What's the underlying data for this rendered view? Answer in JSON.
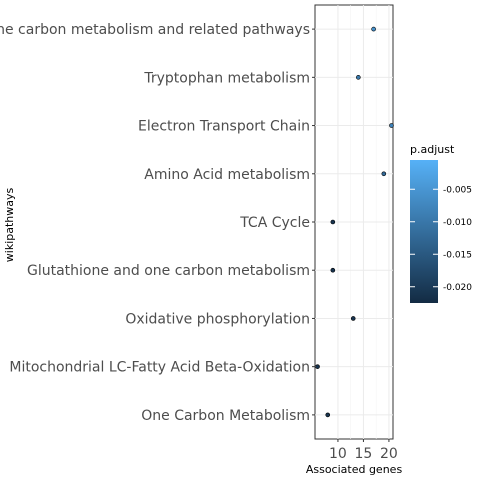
{
  "chart_data": {
    "type": "scatter",
    "xlabel": "Associated genes",
    "ylabel": "wikipathways",
    "xlim": [
      5.5,
      20.8
    ],
    "x_ticks": [
      "10",
      "15",
      "20"
    ],
    "x_tick_values": [
      10,
      15,
      20
    ],
    "grid": true,
    "categories": [
      "One carbon metabolism and related pathways",
      "Tryptophan metabolism",
      "Electron Transport Chain",
      "Amino Acid metabolism",
      "TCA Cycle",
      "Glutathione and one carbon metabolism",
      "Oxidative phosphorylation",
      "Mitochondrial LC-Fatty Acid Beta-Oxidation",
      "One Carbon Metabolism"
    ],
    "values": [
      17,
      14,
      20.5,
      19,
      9,
      9,
      13,
      6,
      8
    ],
    "p_adjust": [
      -0.006,
      -0.01,
      -0.008,
      -0.012,
      -0.021,
      -0.021,
      -0.021,
      -0.021,
      -0.021
    ],
    "legend": {
      "title": "p.adjust",
      "position": "right",
      "ticks": [
        "-0.005",
        "-0.010",
        "-0.015",
        "-0.020"
      ],
      "tick_values": [
        -0.005,
        -0.01,
        -0.015,
        -0.02
      ],
      "range": [
        -0.0225,
        -0.0005
      ],
      "color_low": "#132b43",
      "color_high": "#56b1f7"
    }
  }
}
